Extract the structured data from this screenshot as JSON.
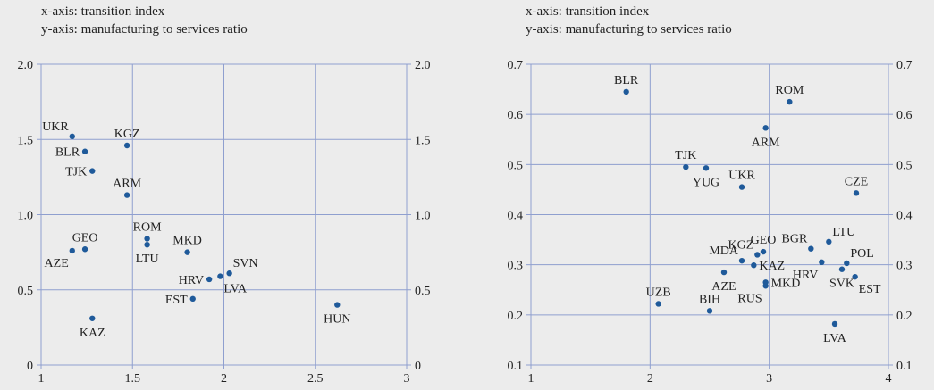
{
  "chart_data": [
    {
      "type": "scatter",
      "caption_x": "x-axis: transition index",
      "caption_y": "y-axis: manufacturing to services ratio",
      "xlim": [
        1,
        3
      ],
      "ylim": [
        0,
        2
      ],
      "xticks": [
        {
          "v": 1,
          "t": "1"
        },
        {
          "v": 1.5,
          "t": "1.5"
        },
        {
          "v": 2,
          "t": "2"
        },
        {
          "v": 2.5,
          "t": "2.5"
        },
        {
          "v": 3,
          "t": "3"
        }
      ],
      "yticks": [
        {
          "v": 0,
          "t": "0"
        },
        {
          "v": 0.5,
          "t": "0.5"
        },
        {
          "v": 1,
          "t": "1.0"
        },
        {
          "v": 1.5,
          "t": "1.5"
        },
        {
          "v": 2,
          "t": "2.0"
        }
      ],
      "grid": true,
      "marker_color": "#1f5a9a",
      "points": [
        {
          "label": "UKR",
          "x": 1.17,
          "y": 1.52,
          "pos": "tl"
        },
        {
          "label": "BLR",
          "x": 1.24,
          "y": 1.42,
          "pos": "l"
        },
        {
          "label": "TJK",
          "x": 1.28,
          "y": 1.29,
          "pos": "l"
        },
        {
          "label": "KGZ",
          "x": 1.47,
          "y": 1.46,
          "pos": "t"
        },
        {
          "label": "ARM",
          "x": 1.47,
          "y": 1.13,
          "pos": "t"
        },
        {
          "label": "GEO",
          "x": 1.24,
          "y": 0.77,
          "pos": "t"
        },
        {
          "label": "AZE",
          "x": 1.17,
          "y": 0.76,
          "pos": "bl"
        },
        {
          "label": "KAZ",
          "x": 1.28,
          "y": 0.31,
          "pos": "b"
        },
        {
          "label": "ROM",
          "x": 1.58,
          "y": 0.84,
          "pos": "t"
        },
        {
          "label": "LTU",
          "x": 1.58,
          "y": 0.8,
          "pos": "b"
        },
        {
          "label": "MKD",
          "x": 1.8,
          "y": 0.75,
          "pos": "t"
        },
        {
          "label": "HRV",
          "x": 1.92,
          "y": 0.57,
          "pos": "l"
        },
        {
          "label": "SVN",
          "x": 2.03,
          "y": 0.61,
          "pos": "tr"
        },
        {
          "label": "LVA",
          "x": 1.98,
          "y": 0.59,
          "pos": "br"
        },
        {
          "label": "EST",
          "x": 1.83,
          "y": 0.44,
          "pos": "l"
        },
        {
          "label": "HUN",
          "x": 2.62,
          "y": 0.4,
          "pos": "b"
        }
      ]
    },
    {
      "type": "scatter",
      "caption_x": "x-axis: transition index",
      "caption_y": "y-axis: manufacturing to services ratio",
      "xlim": [
        1,
        4
      ],
      "ylim": [
        0.1,
        0.7
      ],
      "xticks": [
        {
          "v": 1,
          "t": "1"
        },
        {
          "v": 2,
          "t": "2"
        },
        {
          "v": 3,
          "t": "3"
        },
        {
          "v": 4,
          "t": "4"
        }
      ],
      "yticks": [
        {
          "v": 0.1,
          "t": "0.1"
        },
        {
          "v": 0.2,
          "t": "0.2"
        },
        {
          "v": 0.3,
          "t": "0.3"
        },
        {
          "v": 0.4,
          "t": "0.4"
        },
        {
          "v": 0.5,
          "t": "0.5"
        },
        {
          "v": 0.6,
          "t": "0.6"
        },
        {
          "v": 0.7,
          "t": "0.7"
        }
      ],
      "grid": true,
      "marker_color": "#1f5a9a",
      "points": [
        {
          "label": "BLR",
          "x": 1.8,
          "y": 0.645,
          "pos": "t"
        },
        {
          "label": "ROM",
          "x": 3.17,
          "y": 0.625,
          "pos": "t"
        },
        {
          "label": "ARM",
          "x": 2.97,
          "y": 0.573,
          "pos": "b"
        },
        {
          "label": "TJK",
          "x": 2.3,
          "y": 0.495,
          "pos": "t"
        },
        {
          "label": "YUG",
          "x": 2.47,
          "y": 0.493,
          "pos": "b"
        },
        {
          "label": "UKR",
          "x": 2.77,
          "y": 0.455,
          "pos": "t"
        },
        {
          "label": "CZE",
          "x": 3.73,
          "y": 0.443,
          "pos": "t"
        },
        {
          "label": "LTU",
          "x": 3.5,
          "y": 0.346,
          "pos": "tr"
        },
        {
          "label": "BGR",
          "x": 3.35,
          "y": 0.332,
          "pos": "tl"
        },
        {
          "label": "GEO",
          "x": 2.95,
          "y": 0.326,
          "pos": "t"
        },
        {
          "label": "KGZ",
          "x": 2.9,
          "y": 0.32,
          "pos": "tl"
        },
        {
          "label": "MDA",
          "x": 2.77,
          "y": 0.308,
          "pos": "tl"
        },
        {
          "label": "POL",
          "x": 3.65,
          "y": 0.303,
          "pos": "tr"
        },
        {
          "label": "KAZ",
          "x": 2.87,
          "y": 0.299,
          "pos": "r"
        },
        {
          "label": "HRV",
          "x": 3.44,
          "y": 0.305,
          "pos": "bl"
        },
        {
          "label": "SVK",
          "x": 3.61,
          "y": 0.291,
          "pos": "b"
        },
        {
          "label": "EST",
          "x": 3.72,
          "y": 0.276,
          "pos": "br"
        },
        {
          "label": "AZE",
          "x": 2.62,
          "y": 0.285,
          "pos": "b"
        },
        {
          "label": "MKD",
          "x": 2.97,
          "y": 0.265,
          "pos": "r"
        },
        {
          "label": "RUS",
          "x": 2.97,
          "y": 0.258,
          "pos": "bl"
        },
        {
          "label": "UZB",
          "x": 2.07,
          "y": 0.222,
          "pos": "t"
        },
        {
          "label": "BIH",
          "x": 2.5,
          "y": 0.208,
          "pos": "t"
        },
        {
          "label": "LVA",
          "x": 3.55,
          "y": 0.182,
          "pos": "b"
        }
      ]
    }
  ]
}
